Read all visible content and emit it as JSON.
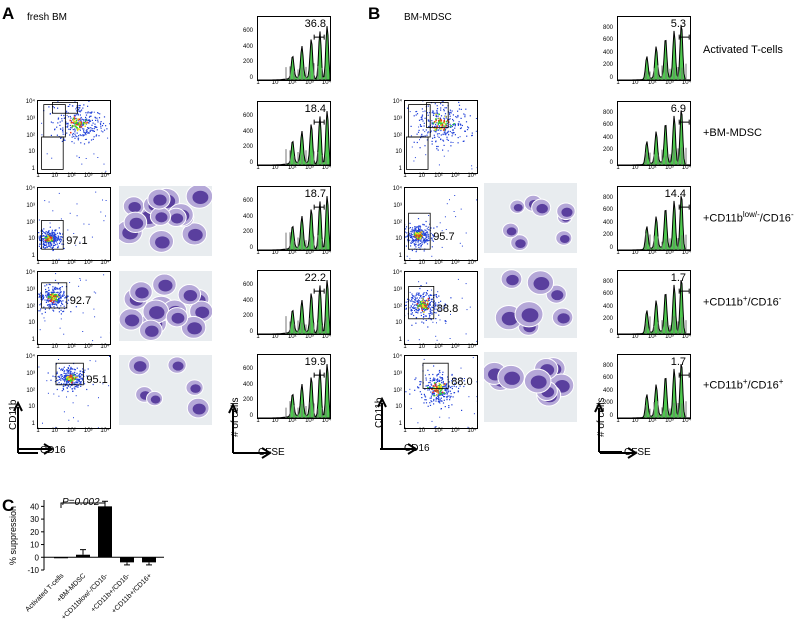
{
  "panelA": {
    "letter": "A",
    "title": "fresh BM",
    "scatter_gates": [
      "97.1",
      "92.7",
      "95.1"
    ],
    "hist_values": [
      "36.8",
      "18.4",
      "18.7",
      "22.2",
      "19.9"
    ],
    "xaxis_scatter": "CD16",
    "yaxis_scatter": "CD11b",
    "xaxis_hist": "CFSE",
    "yaxis_hist": "# of cells"
  },
  "panelB": {
    "letter": "B",
    "title": "BM-MDSC",
    "scatter_gates": [
      "95.7",
      "88.8",
      "88.0"
    ],
    "hist_values": [
      "5.3",
      "6.9",
      "14.4",
      "1.7",
      "1.7"
    ],
    "xaxis_scatter": "CD16",
    "yaxis_scatter": "CD11b",
    "xaxis_hist": "CFSE",
    "yaxis_hist": "# of cells"
  },
  "conditions": [
    {
      "main": "Activated T-cells",
      "sup1": "",
      "mid": "",
      "sup2": ""
    },
    {
      "main": "+BM-MDSC",
      "sup1": "",
      "mid": "",
      "sup2": ""
    },
    {
      "main": "+CD11b",
      "sup1": "low/-",
      "mid": "/CD16",
      "sup2": "-"
    },
    {
      "main": "+CD11b",
      "sup1": "+",
      "mid": "/CD16",
      "sup2": "-"
    },
    {
      "main": "+CD11b",
      "sup1": "+",
      "mid": "/CD16",
      "sup2": "+"
    }
  ],
  "histYTicksA": [
    "0",
    "200",
    "400",
    "600"
  ],
  "histYTicksB": [
    "0",
    "200",
    "400",
    "600",
    "800"
  ],
  "scatterTicks": [
    "1",
    "10",
    "10²",
    "10³",
    "10⁴"
  ],
  "panelC": {
    "letter": "C",
    "ylabel": "% suppression",
    "pvalue": "P=0.002",
    "yticks": [
      "40",
      "30",
      "20",
      "10",
      "0",
      "-10"
    ],
    "categories": [
      "Activated T-cells",
      "+BM-MDSC",
      "+CD11blow/-/CD16-",
      "+CD11b+/CD16-",
      "+CD11b+/CD16+"
    ]
  },
  "chart_data": {
    "type": "bar",
    "categories": [
      "Activated T-cells",
      "+BM-MDSC",
      "+CD11blow/-/CD16-",
      "+CD11b+/CD16-",
      "+CD11b+/CD16+"
    ],
    "values": [
      0,
      2,
      40,
      -4,
      -4
    ],
    "errors": [
      0,
      4,
      4,
      2,
      2
    ],
    "ylabel": "% suppression",
    "ylim": [
      -10,
      45
    ],
    "annotation": "P=0.002"
  },
  "colors": {
    "hist_fill": "#4ec94e",
    "hist_line": "#000000",
    "scatter_blue": "#1f3fd8"
  }
}
